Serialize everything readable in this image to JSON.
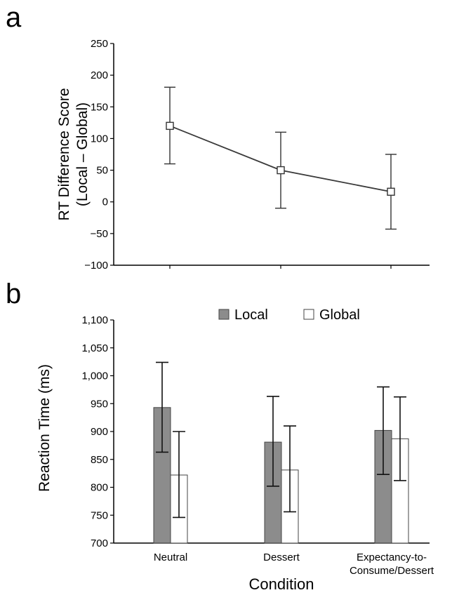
{
  "chart_data": [
    {
      "panel": "a",
      "type": "line",
      "title": "",
      "xlabel": "",
      "ylabel": [
        "RT Difference Score",
        "(Local – Global)"
      ],
      "ylim": [
        -100,
        250
      ],
      "yticks": [
        250,
        200,
        150,
        100,
        50,
        0,
        -50,
        -100
      ],
      "ytick_labels": [
        "250",
        "200",
        "150",
        "100",
        "50",
        "0",
        "−50",
        "−100"
      ],
      "x": [
        1,
        2,
        3
      ],
      "series": [
        {
          "values": [
            120,
            50,
            16
          ],
          "err_low": [
            60,
            -10,
            -43
          ],
          "err_high": [
            181,
            110,
            75
          ]
        }
      ],
      "grid": false,
      "colors": {
        "line": "#3a3a3a"
      }
    },
    {
      "panel": "b",
      "type": "bar",
      "title": "",
      "xlabel": "Condition",
      "ylabel": "Reaction Time (ms)",
      "ylim": [
        700,
        1100
      ],
      "yticks": [
        1100,
        1050,
        1000,
        950,
        900,
        850,
        800,
        750,
        700
      ],
      "ytick_labels": [
        "1,100",
        "1,050",
        "1,000",
        "950",
        "900",
        "850",
        "800",
        "750",
        "700"
      ],
      "categories": [
        "Neutral",
        "Dessert",
        "Expectancy-to-Consume/Dessert"
      ],
      "category_lines": [
        [
          "Neutral"
        ],
        [
          "Dessert"
        ],
        [
          "Expectancy-to-",
          "Consume/Dessert"
        ]
      ],
      "series": [
        {
          "name": "Local",
          "values": [
            943,
            881,
            902
          ],
          "err_low": [
            863,
            802,
            823
          ],
          "err_high": [
            1024,
            963,
            980
          ],
          "color": "#8c8c8c"
        },
        {
          "name": "Global",
          "values": [
            822,
            831,
            887
          ],
          "err_low": [
            746,
            756,
            812
          ],
          "err_high": [
            900,
            910,
            962
          ],
          "color": "#ffffff"
        }
      ],
      "legend": "top",
      "grid": false
    }
  ]
}
